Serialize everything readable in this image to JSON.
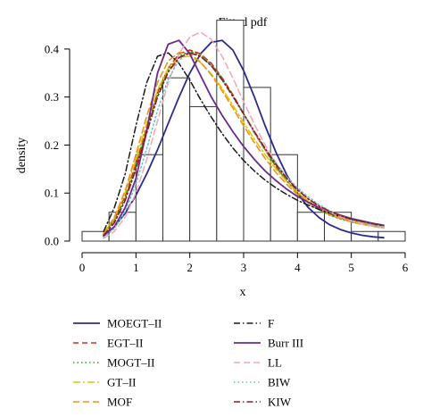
{
  "chart_data": {
    "type": "histogram-with-density-lines",
    "title": "Fitted pdf",
    "xlabel": "x",
    "ylabel": "density",
    "xlim": [
      0,
      6
    ],
    "ylim": [
      0,
      0.45
    ],
    "x_ticks": [
      "0",
      "1",
      "2",
      "3",
      "4",
      "5",
      "6"
    ],
    "y_ticks": [
      "0.0",
      "0.1",
      "0.2",
      "0.3",
      "0.4"
    ],
    "histogram": {
      "bin_width": 0.5,
      "bins": [
        {
          "x0": 0.0,
          "x1": 0.5,
          "density": 0.02
        },
        {
          "x0": 0.5,
          "x1": 1.0,
          "density": 0.06
        },
        {
          "x0": 1.0,
          "x1": 1.5,
          "density": 0.18
        },
        {
          "x0": 1.5,
          "x1": 2.0,
          "density": 0.34
        },
        {
          "x0": 2.0,
          "x1": 2.5,
          "density": 0.28
        },
        {
          "x0": 2.5,
          "x1": 3.0,
          "density": 0.46
        },
        {
          "x0": 3.0,
          "x1": 3.5,
          "density": 0.32
        },
        {
          "x0": 3.5,
          "x1": 4.0,
          "density": 0.18
        },
        {
          "x0": 4.0,
          "x1": 4.5,
          "density": 0.06
        },
        {
          "x0": 4.5,
          "x1": 5.0,
          "density": 0.06
        },
        {
          "x0": 5.0,
          "x1": 5.5,
          "density": 0.02
        },
        {
          "x0": 5.5,
          "x1": 6.0,
          "density": 0.02
        }
      ]
    },
    "series": [
      {
        "name": "MOEGT–II",
        "color": "#2b2b8c",
        "dash": "solid",
        "width": 1.8,
        "x": [
          0.4,
          0.6,
          0.8,
          1.0,
          1.2,
          1.4,
          1.6,
          1.8,
          2.0,
          2.2,
          2.4,
          2.6,
          2.8,
          3.0,
          3.2,
          3.4,
          3.6,
          3.8,
          4.0,
          4.2,
          4.4,
          4.6,
          4.8,
          5.0,
          5.2,
          5.4,
          5.6
        ],
        "y": [
          0.012,
          0.03,
          0.058,
          0.095,
          0.14,
          0.19,
          0.245,
          0.3,
          0.35,
          0.39,
          0.414,
          0.418,
          0.398,
          0.355,
          0.3,
          0.24,
          0.185,
          0.138,
          0.1,
          0.07,
          0.049,
          0.034,
          0.024,
          0.017,
          0.012,
          0.009,
          0.007
        ]
      },
      {
        "name": "EGT–II",
        "color": "#d42a1c",
        "dash": "6,4",
        "width": 1.6,
        "x": [
          0.4,
          0.6,
          0.8,
          1.0,
          1.2,
          1.4,
          1.6,
          1.8,
          2.0,
          2.2,
          2.4,
          2.6,
          2.8,
          3.0,
          3.2,
          3.4,
          3.6,
          3.8,
          4.0,
          4.2,
          4.4,
          4.6,
          4.8,
          5.0,
          5.2,
          5.4,
          5.6
        ],
        "y": [
          0.015,
          0.045,
          0.095,
          0.16,
          0.235,
          0.31,
          0.36,
          0.39,
          0.398,
          0.39,
          0.37,
          0.34,
          0.305,
          0.265,
          0.225,
          0.19,
          0.155,
          0.125,
          0.1,
          0.08,
          0.066,
          0.056,
          0.048,
          0.042,
          0.037,
          0.033,
          0.03
        ]
      },
      {
        "name": "MOGT–II",
        "color": "#3a9a3a",
        "dash": "1.5,3",
        "width": 1.6,
        "x": [
          0.4,
          0.6,
          0.8,
          1.0,
          1.2,
          1.4,
          1.6,
          1.8,
          2.0,
          2.2,
          2.4,
          2.6,
          2.8,
          3.0,
          3.2,
          3.4,
          3.6,
          3.8,
          4.0,
          4.2,
          4.4,
          4.6,
          4.8,
          5.0,
          5.2,
          5.4,
          5.6
        ],
        "y": [
          0.014,
          0.042,
          0.09,
          0.155,
          0.23,
          0.305,
          0.355,
          0.385,
          0.395,
          0.388,
          0.368,
          0.338,
          0.303,
          0.265,
          0.226,
          0.19,
          0.156,
          0.126,
          0.1,
          0.08,
          0.065,
          0.054,
          0.046,
          0.04,
          0.035,
          0.031,
          0.028
        ]
      },
      {
        "name": "GT–II",
        "color": "#e3c500",
        "dash": "8,3,2,3",
        "width": 1.6,
        "x": [
          0.4,
          0.6,
          0.8,
          1.0,
          1.2,
          1.4,
          1.6,
          1.8,
          2.0,
          2.2,
          2.4,
          2.6,
          2.8,
          3.0,
          3.2,
          3.4,
          3.6,
          3.8,
          4.0,
          4.2,
          4.4,
          4.6,
          4.8,
          5.0,
          5.2,
          5.4,
          5.6
        ],
        "y": [
          0.016,
          0.048,
          0.1,
          0.17,
          0.245,
          0.315,
          0.36,
          0.383,
          0.385,
          0.372,
          0.348,
          0.318,
          0.283,
          0.247,
          0.212,
          0.18,
          0.15,
          0.124,
          0.102,
          0.084,
          0.07,
          0.059,
          0.05,
          0.043,
          0.038,
          0.034,
          0.03
        ]
      },
      {
        "name": "MOF",
        "color": "#e8951e",
        "dash": "7,4",
        "width": 1.6,
        "x": [
          0.4,
          0.6,
          0.8,
          1.0,
          1.2,
          1.4,
          1.6,
          1.8,
          2.0,
          2.2,
          2.4,
          2.6,
          2.8,
          3.0,
          3.2,
          3.4,
          3.6,
          3.8,
          4.0,
          4.2,
          4.4,
          4.6,
          4.8,
          5.0,
          5.2,
          5.4,
          5.6
        ],
        "y": [
          0.016,
          0.05,
          0.105,
          0.18,
          0.26,
          0.33,
          0.375,
          0.393,
          0.39,
          0.373,
          0.346,
          0.313,
          0.277,
          0.24,
          0.205,
          0.172,
          0.143,
          0.118,
          0.097,
          0.08,
          0.066,
          0.055,
          0.047,
          0.04,
          0.035,
          0.031,
          0.027
        ]
      },
      {
        "name": "F",
        "color": "#1a1a1a",
        "dash": "7,3,1.5,3",
        "width": 1.5,
        "x": [
          0.4,
          0.6,
          0.8,
          1.0,
          1.2,
          1.4,
          1.6,
          1.8,
          2.0,
          2.2,
          2.4,
          2.6,
          2.8,
          3.0,
          3.2,
          3.4,
          3.6,
          3.8,
          4.0,
          4.2,
          4.4,
          4.6,
          4.8,
          5.0,
          5.2,
          5.4,
          5.6
        ],
        "y": [
          0.02,
          0.07,
          0.14,
          0.24,
          0.33,
          0.385,
          0.392,
          0.37,
          0.335,
          0.295,
          0.258,
          0.224,
          0.194,
          0.168,
          0.146,
          0.127,
          0.111,
          0.097,
          0.085,
          0.075,
          0.066,
          0.058,
          0.051,
          0.045,
          0.04,
          0.036,
          0.032
        ]
      },
      {
        "name": "Burr III",
        "color": "#6b2a8a",
        "dash": "solid",
        "width": 1.8,
        "x": [
          0.4,
          0.6,
          0.8,
          1.0,
          1.2,
          1.4,
          1.6,
          1.8,
          2.0,
          2.2,
          2.4,
          2.6,
          2.8,
          3.0,
          3.2,
          3.4,
          3.6,
          3.8,
          4.0,
          4.2,
          4.4,
          4.6,
          4.8,
          5.0,
          5.2,
          5.4,
          5.6
        ],
        "y": [
          0.01,
          0.03,
          0.07,
          0.13,
          0.23,
          0.35,
          0.41,
          0.418,
          0.39,
          0.345,
          0.3,
          0.262,
          0.228,
          0.197,
          0.17,
          0.146,
          0.126,
          0.108,
          0.093,
          0.081,
          0.07,
          0.061,
          0.054,
          0.047,
          0.042,
          0.037,
          0.033
        ]
      },
      {
        "name": "LL",
        "color": "#f0a6b4",
        "dash": "7,4",
        "width": 1.5,
        "x": [
          0.4,
          0.6,
          0.8,
          1.0,
          1.2,
          1.4,
          1.6,
          1.8,
          2.0,
          2.2,
          2.4,
          2.6,
          2.8,
          3.0,
          3.2,
          3.4,
          3.6,
          3.8,
          4.0,
          4.2,
          4.4,
          4.6,
          4.8,
          5.0,
          5.2,
          5.4,
          5.6
        ],
        "y": [
          0.006,
          0.02,
          0.05,
          0.1,
          0.17,
          0.25,
          0.33,
          0.39,
          0.425,
          0.435,
          0.42,
          0.385,
          0.34,
          0.29,
          0.243,
          0.2,
          0.163,
          0.133,
          0.108,
          0.088,
          0.072,
          0.06,
          0.05,
          0.042,
          0.036,
          0.031,
          0.027
        ]
      },
      {
        "name": "BIW",
        "color": "#6dc5c8",
        "dash": "1.5,3",
        "width": 1.6,
        "x": [
          0.4,
          0.6,
          0.8,
          1.0,
          1.2,
          1.4,
          1.6,
          1.8,
          2.0,
          2.2,
          2.4,
          2.6,
          2.8,
          3.0,
          3.2,
          3.4,
          3.6,
          3.8,
          4.0,
          4.2,
          4.4,
          4.6,
          4.8,
          5.0,
          5.2,
          5.4,
          5.6
        ],
        "y": [
          0.008,
          0.026,
          0.062,
          0.118,
          0.192,
          0.272,
          0.337,
          0.377,
          0.392,
          0.386,
          0.365,
          0.335,
          0.3,
          0.263,
          0.226,
          0.192,
          0.161,
          0.134,
          0.111,
          0.092,
          0.076,
          0.063,
          0.053,
          0.045,
          0.039,
          0.034,
          0.03
        ]
      },
      {
        "name": "KIW",
        "color": "#8a1c1c",
        "dash": "7,3,1.5,3",
        "width": 1.6,
        "x": [
          0.4,
          0.6,
          0.8,
          1.0,
          1.2,
          1.4,
          1.6,
          1.8,
          2.0,
          2.2,
          2.4,
          2.6,
          2.8,
          3.0,
          3.2,
          3.4,
          3.6,
          3.8,
          4.0,
          4.2,
          4.4,
          4.6,
          4.8,
          5.0,
          5.2,
          5.4,
          5.6
        ],
        "y": [
          0.012,
          0.038,
          0.085,
          0.15,
          0.225,
          0.3,
          0.352,
          0.382,
          0.392,
          0.385,
          0.365,
          0.336,
          0.302,
          0.265,
          0.228,
          0.193,
          0.16,
          0.131,
          0.107,
          0.088,
          0.073,
          0.062,
          0.053,
          0.046,
          0.041,
          0.036,
          0.032
        ]
      }
    ],
    "legend": {
      "placement": "bottom",
      "columns": [
        [
          "MOEGT–II",
          "EGT–II",
          "MOGT–II",
          "GT–II",
          "MOF"
        ],
        [
          "F",
          "Burr III",
          "LL",
          "BIW",
          "KIW"
        ]
      ]
    },
    "grid": false
  }
}
